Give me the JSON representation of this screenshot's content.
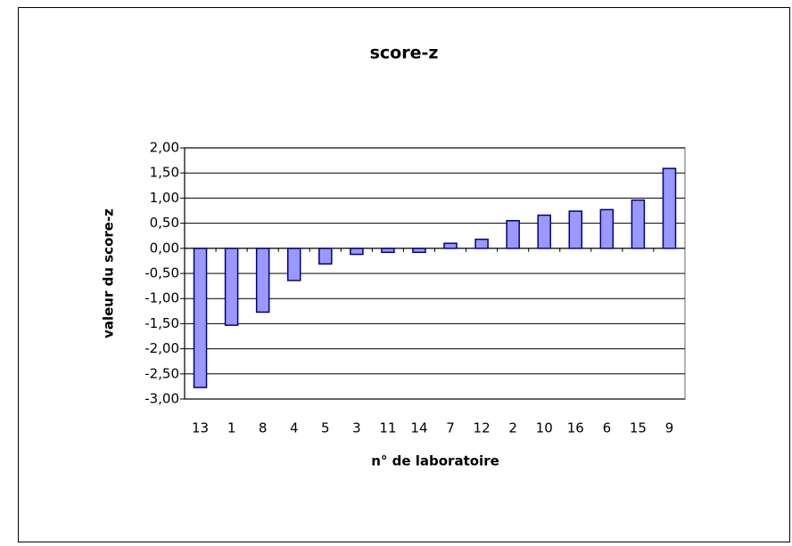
{
  "chart_data": {
    "type": "bar",
    "title": "score-z",
    "x_label": "n° de laboratoire",
    "y_label": "valeur du score-z",
    "categories": [
      "13",
      "1",
      "8",
      "4",
      "5",
      "3",
      "11",
      "14",
      "7",
      "12",
      "2",
      "10",
      "16",
      "6",
      "15",
      "9"
    ],
    "values": [
      -2.77,
      -1.53,
      -1.27,
      -0.64,
      -0.31,
      -0.12,
      -0.08,
      -0.08,
      0.1,
      0.18,
      0.55,
      0.66,
      0.74,
      0.77,
      0.96,
      1.59
    ],
    "color": "#9999ff",
    "ylim": [
      -3,
      2
    ],
    "yticks": [
      {
        "value": -3,
        "label": "-3,00"
      },
      {
        "value": -2.5,
        "label": "-2,50"
      },
      {
        "value": -2,
        "label": "-2,00"
      },
      {
        "value": -1.5,
        "label": "-1,50"
      },
      {
        "value": -1,
        "label": "-1,00"
      },
      {
        "value": -0.5,
        "label": "-0,50"
      },
      {
        "value": 0,
        "label": "0,00"
      },
      {
        "value": 0.5,
        "label": "0,50"
      },
      {
        "value": 1,
        "label": "1,00"
      },
      {
        "value": 1.5,
        "label": "1,50"
      },
      {
        "value": 2,
        "label": "2,00"
      }
    ],
    "grid": true
  }
}
